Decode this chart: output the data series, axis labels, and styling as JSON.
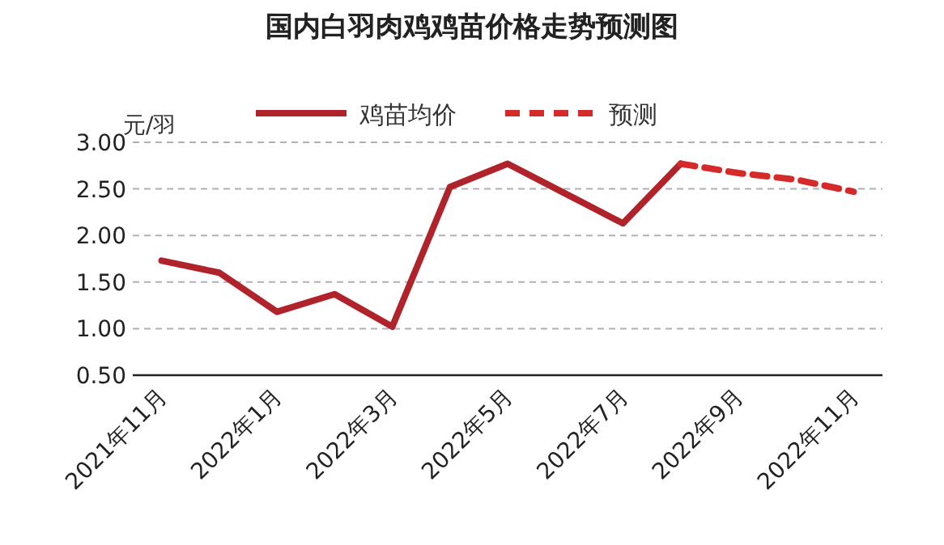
{
  "chart_data": {
    "type": "line",
    "title": "国内白羽肉鸡鸡苗价格走势预测图",
    "ylabel": "元/羽",
    "categories": [
      "2021年11月",
      null,
      "2022年1月",
      null,
      "2022年3月",
      null,
      "2022年5月",
      null,
      "2022年7月",
      null,
      "2022年9月",
      null,
      "2022年11月"
    ],
    "series": [
      {
        "name": "鸡苗均价",
        "color": "#b0232a",
        "line_style": "solid",
        "values": [
          1.73,
          1.6,
          1.18,
          1.37,
          1.02,
          2.52,
          2.77,
          2.45,
          2.13,
          2.77,
          null,
          null,
          null
        ]
      },
      {
        "name": "预测",
        "color": "#d42a2a",
        "line_style": "dashed",
        "values": [
          null,
          null,
          null,
          null,
          null,
          null,
          null,
          null,
          null,
          2.77,
          2.67,
          2.6,
          2.47
        ]
      }
    ],
    "ylim": [
      0.5,
      3.0
    ],
    "yticks": [
      {
        "value": 0.5,
        "label": "0.50"
      },
      {
        "value": 1.0,
        "label": "1.00"
      },
      {
        "value": 1.5,
        "label": "1.50"
      },
      {
        "value": 2.0,
        "label": "2.00"
      },
      {
        "value": 2.5,
        "label": "2.50"
      },
      {
        "value": 3.0,
        "label": "3.00"
      }
    ],
    "grid": "y",
    "legend": "top",
    "marker": "none"
  }
}
